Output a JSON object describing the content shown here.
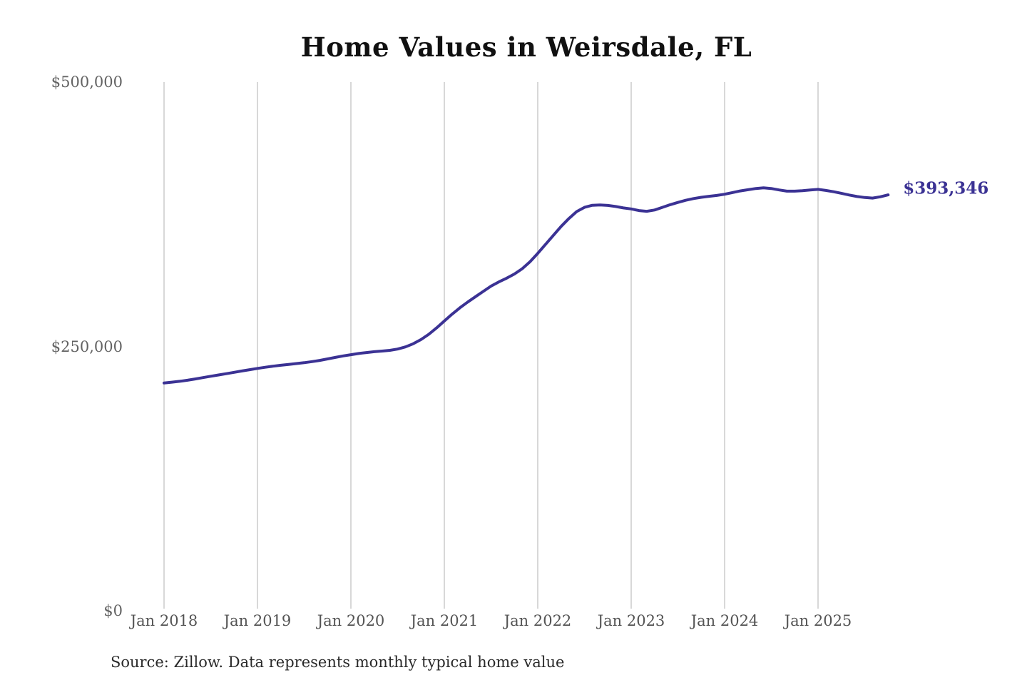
{
  "page": {
    "source_note": "Source: Zillow. Data represents monthly typical home value"
  },
  "chart_data": {
    "type": "line",
    "title": "Home Values in Weirsdale, FL",
    "series_name": "Monthly typical home value",
    "x_start": "2018-01",
    "x_end": "2025-10",
    "frequency": "monthly",
    "values": [
      215400,
      216200,
      217000,
      218000,
      219200,
      220500,
      221800,
      223000,
      224200,
      225500,
      226800,
      228000,
      229200,
      230300,
      231300,
      232200,
      233000,
      233800,
      234600,
      235600,
      236800,
      238200,
      239600,
      241000,
      242200,
      243300,
      244200,
      245000,
      245600,
      246300,
      247500,
      249500,
      252500,
      256500,
      261500,
      267500,
      274000,
      280500,
      286500,
      292000,
      297000,
      302000,
      307000,
      311000,
      314500,
      318500,
      323500,
      330000,
      338000,
      346500,
      355000,
      363500,
      371000,
      377500,
      381500,
      383500,
      383800,
      383300,
      382300,
      381000,
      380000,
      378500,
      377800,
      379000,
      381500,
      384000,
      386200,
      388200,
      389800,
      391000,
      392000,
      392800,
      393900,
      395500,
      397000,
      398200,
      399300,
      400000,
      399300,
      398000,
      396800,
      396800,
      397200,
      397900,
      398500,
      397500,
      396300,
      394800,
      393200,
      391800,
      390800,
      390300,
      391500,
      393346
    ],
    "last_value": 393346,
    "end_label": "$393,346",
    "x_tick_labels": [
      "Jan 2018",
      "Jan 2019",
      "Jan 2020",
      "Jan 2021",
      "Jan 2022",
      "Jan 2023",
      "Jan 2024",
      "Jan 2025"
    ],
    "y_ticks": [
      {
        "value": 0,
        "label": "$0"
      },
      {
        "value": 250000,
        "label": "$250,000"
      },
      {
        "value": 500000,
        "label": "$500,000"
      }
    ],
    "ylim": [
      0,
      500000
    ],
    "grid": "vertical-yearly",
    "legend": "none",
    "line_color": "#3b3294",
    "grid_color": "#cbcbcb",
    "x_label_color": "#545454",
    "y_label_color": "#636363",
    "title_color": "#111111"
  }
}
